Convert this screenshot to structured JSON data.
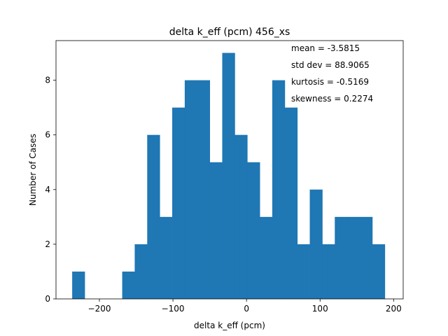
{
  "chart_data": {
    "type": "bar",
    "title": "delta k_eff (pcm) 456_xs",
    "xlabel": "delta k_eff (pcm)",
    "ylabel": "Number of Cases",
    "xlim": [
      -259,
      213
    ],
    "ylim": [
      0,
      9.45
    ],
    "xticks": [
      -200,
      -100,
      0,
      100,
      200
    ],
    "xtick_labels": [
      "−200",
      "−100",
      "0",
      "100",
      "200"
    ],
    "yticks": [
      0,
      2,
      4,
      6,
      8
    ],
    "ytick_labels": [
      "0",
      "2",
      "4",
      "6",
      "8"
    ],
    "grid": false,
    "bin_edges": [
      -237,
      -220,
      -203,
      -186,
      -169,
      -152,
      -135,
      -118,
      -101,
      -84,
      -67,
      -50,
      -33,
      -16,
      1,
      18,
      35,
      52,
      69,
      86,
      103,
      120,
      137,
      154,
      171,
      188
    ],
    "values": [
      1,
      0,
      0,
      0,
      1,
      2,
      6,
      3,
      7,
      8,
      8,
      5,
      9,
      6,
      5,
      3,
      8,
      7,
      2,
      4,
      2,
      3,
      3,
      3,
      2
    ],
    "bar_color": "#1f77b4",
    "annotations": [
      "mean = -3.5815",
      "std dev = 88.9065",
      "kurtosis = -0.5169",
      "skewness = 0.2274"
    ]
  }
}
